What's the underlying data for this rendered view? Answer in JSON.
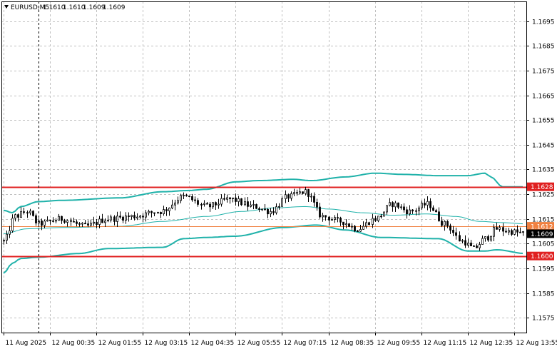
{
  "chart_data": {
    "type": "candlestick",
    "symbol_header": "EURUSD,M5",
    "ohlc_header": [
      "1.1610",
      "1.1610",
      "1.1609",
      "1.1609"
    ],
    "ylim": [
      1.1569,
      1.1703
    ],
    "y_ticks": [
      "1.1695",
      "1.1685",
      "1.1675",
      "1.1665",
      "1.1655",
      "1.1645",
      "1.1635",
      "1.1625",
      "1.1615",
      "1.1605",
      "1.1595",
      "1.1585",
      "1.1575"
    ],
    "y_tick_values": [
      1.1695,
      1.1685,
      1.1675,
      1.1665,
      1.1655,
      1.1645,
      1.1635,
      1.1625,
      1.1615,
      1.1605,
      1.1595,
      1.1585,
      1.1575
    ],
    "x_ticks": [
      "11 Aug 2025",
      "12 Aug 00:35",
      "12 Aug 01:55",
      "12 Aug 03:15",
      "12 Aug 04:35",
      "12 Aug 05:55",
      "12 Aug 07:15",
      "12 Aug 08:35",
      "12 Aug 09:55",
      "12 Aug 11:15",
      "12 Aug 12:35",
      "12 Aug 13:55"
    ],
    "x_tick_bar_index": [
      0,
      16,
      32,
      48,
      64,
      80,
      96,
      112,
      128,
      144,
      160,
      176
    ],
    "bar_count": 180,
    "grid": true,
    "horizontal_levels": [
      {
        "value": 1.1628,
        "label": "1.1628",
        "color": "#e02020"
      },
      {
        "value": 1.16,
        "label": "1.1600",
        "color": "#e02020"
      }
    ],
    "current_price_line": {
      "value": 1.1612,
      "label": "1.1612",
      "color": "#f08040"
    },
    "last_price": {
      "value": 1.1609,
      "label": "1.1609"
    },
    "colors": {
      "background": "#ffffff",
      "grid": "#c0c0c0",
      "candle": "#000000",
      "bands": "#20b2aa",
      "level": "#e02020",
      "price_line": "#f08040",
      "last_tag": "#000000"
    },
    "bollinger_keypoints": {
      "upper": [
        [
          0,
          1.16185
        ],
        [
          3,
          1.16175
        ],
        [
          6,
          1.162
        ],
        [
          12,
          1.1622
        ],
        [
          20,
          1.16225
        ],
        [
          40,
          1.16235
        ],
        [
          55,
          1.1626
        ],
        [
          64,
          1.16265
        ],
        [
          70,
          1.1627
        ],
        [
          80,
          1.163
        ],
        [
          88,
          1.16305
        ],
        [
          100,
          1.1631
        ],
        [
          106,
          1.16305
        ],
        [
          118,
          1.1632
        ],
        [
          128,
          1.16335
        ],
        [
          138,
          1.1633
        ],
        [
          150,
          1.16325
        ],
        [
          160,
          1.16325
        ],
        [
          166,
          1.16335
        ],
        [
          168,
          1.1632
        ],
        [
          172,
          1.1628
        ],
        [
          180,
          1.1628
        ]
      ],
      "middle": [
        [
          0,
          1.1609
        ],
        [
          8,
          1.1611
        ],
        [
          20,
          1.16115
        ],
        [
          40,
          1.1612
        ],
        [
          55,
          1.1614
        ],
        [
          70,
          1.1616
        ],
        [
          82,
          1.1618
        ],
        [
          94,
          1.16195
        ],
        [
          104,
          1.162
        ],
        [
          112,
          1.1619
        ],
        [
          124,
          1.16175
        ],
        [
          134,
          1.16165
        ],
        [
          146,
          1.1617
        ],
        [
          156,
          1.1616
        ],
        [
          164,
          1.1614
        ],
        [
          172,
          1.16135
        ],
        [
          180,
          1.1613
        ]
      ],
      "lower": [
        [
          0,
          1.1593
        ],
        [
          3,
          1.1597
        ],
        [
          6,
          1.1599
        ],
        [
          12,
          1.15995
        ],
        [
          26,
          1.1601
        ],
        [
          36,
          1.1603
        ],
        [
          55,
          1.16035
        ],
        [
          62,
          1.1607
        ],
        [
          70,
          1.16075
        ],
        [
          80,
          1.1608
        ],
        [
          96,
          1.16115
        ],
        [
          108,
          1.16125
        ],
        [
          118,
          1.16105
        ],
        [
          130,
          1.16075
        ],
        [
          150,
          1.1607
        ],
        [
          160,
          1.1602
        ],
        [
          166,
          1.1602
        ],
        [
          170,
          1.16025
        ],
        [
          180,
          1.1601
        ]
      ]
    },
    "close_keypoints": [
      [
        0,
        1.1606
      ],
      [
        4,
        1.1616
      ],
      [
        8,
        1.1618
      ],
      [
        12,
        1.1613
      ],
      [
        20,
        1.1615
      ],
      [
        28,
        1.1612
      ],
      [
        36,
        1.1615
      ],
      [
        44,
        1.1616
      ],
      [
        54,
        1.1618
      ],
      [
        62,
        1.1624
      ],
      [
        70,
        1.162
      ],
      [
        78,
        1.1623
      ],
      [
        86,
        1.162
      ],
      [
        92,
        1.1618
      ],
      [
        98,
        1.1624
      ],
      [
        104,
        1.1626
      ],
      [
        110,
        1.1616
      ],
      [
        116,
        1.1614
      ],
      [
        122,
        1.1611
      ],
      [
        128,
        1.1615
      ],
      [
        134,
        1.1621
      ],
      [
        140,
        1.1618
      ],
      [
        146,
        1.1621
      ],
      [
        152,
        1.1613
      ],
      [
        158,
        1.1606
      ],
      [
        162,
        1.1603
      ],
      [
        166,
        1.1607
      ],
      [
        170,
        1.1611
      ],
      [
        174,
        1.161
      ],
      [
        180,
        1.1609
      ]
    ]
  }
}
